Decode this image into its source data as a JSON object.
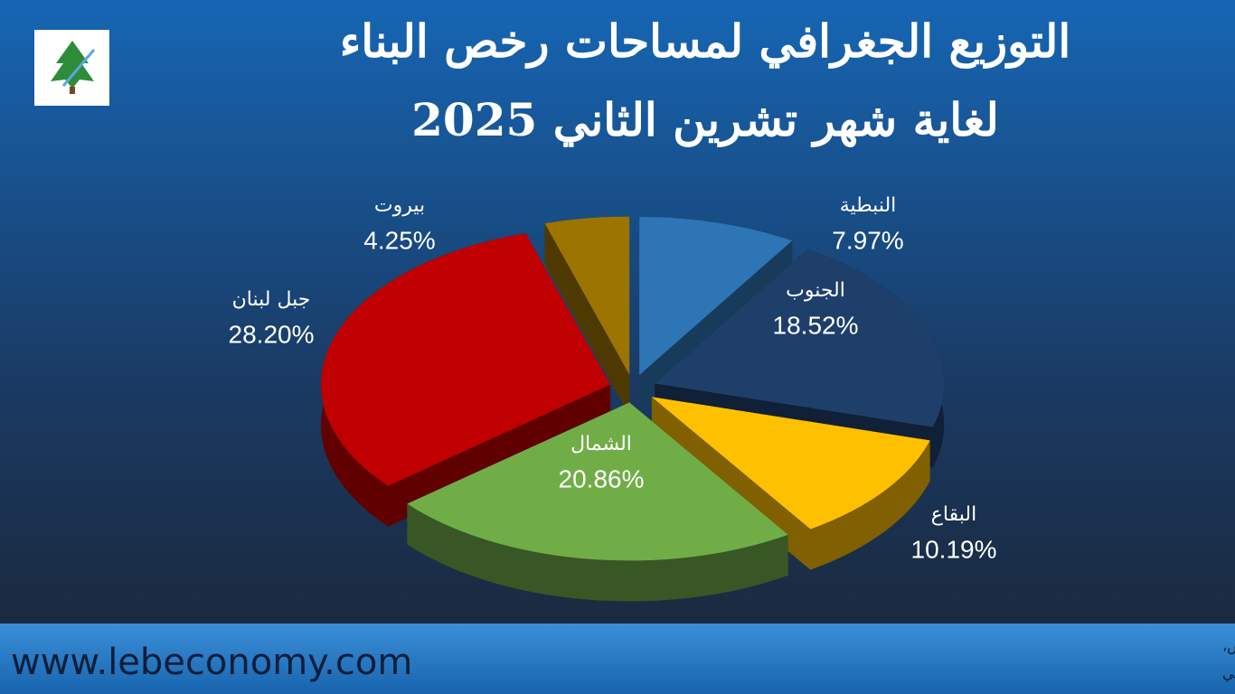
{
  "chart_data": {
    "type": "pie",
    "title": "التوزيع الجغرافي لمساحات رخص البناء",
    "subtitle": "لغاية شهر تشرين الثاني 2025",
    "categories": [
      "النبطية",
      "الجنوب",
      "البقاع",
      "الشمال",
      "جبل لبنان",
      "بيروت"
    ],
    "values": [
      7.97,
      18.52,
      10.19,
      20.86,
      28.2,
      4.25
    ],
    "value_labels": [
      "7.97%",
      "18.52%",
      "10.19%",
      "20.86%",
      "28.20%",
      "4.25%"
    ],
    "colors": [
      "#2e75b6",
      "#1f3f6b",
      "#ffc000",
      "#70ad47",
      "#c00000",
      "#9c7400"
    ]
  },
  "footer": {
    "website": "www.lebeconomy.com",
    "source_lines": [
      "المصدر: نقابة المهندسين في بيروت، نقابة المهندسين في طرابلس،",
      "وحدة الأبحاث الإقتصادية في بنك الإعتماد اللبناني"
    ]
  }
}
